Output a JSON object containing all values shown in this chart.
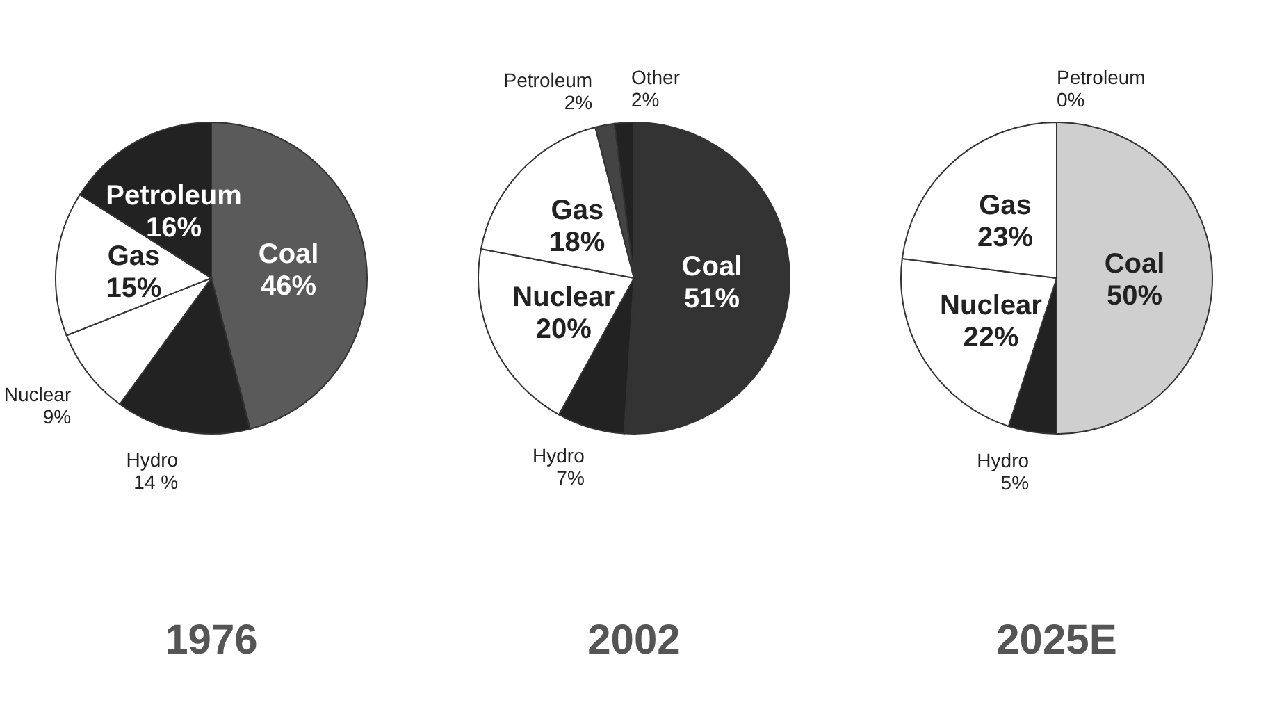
{
  "chart_data": [
    {
      "type": "pie",
      "title": "1976",
      "categories": [
        "Coal",
        "Hydro",
        "Nuclear",
        "Gas",
        "Petroleum"
      ],
      "values": [
        46,
        14,
        9,
        15,
        16
      ],
      "value_labels": [
        "46%",
        "14 %",
        "9%",
        "15%",
        "16%"
      ],
      "colors": [
        "#5a5a5a",
        "#222222",
        "#ffffff",
        "#ffffff",
        "#222222"
      ]
    },
    {
      "type": "pie",
      "title": "2002",
      "categories": [
        "Coal",
        "Hydro",
        "Nuclear",
        "Gas",
        "Petroleum",
        "Other"
      ],
      "values": [
        51,
        7,
        20,
        18,
        2,
        2
      ],
      "value_labels": [
        "51%",
        "7%",
        "20%",
        "18%",
        "2%",
        "2%"
      ],
      "colors": [
        "#333333",
        "#222222",
        "#ffffff",
        "#ffffff",
        "#444444",
        "#222222"
      ]
    },
    {
      "type": "pie",
      "title": "2025E",
      "categories": [
        "Coal",
        "Hydro",
        "Nuclear",
        "Gas",
        "Petroleum"
      ],
      "values": [
        50,
        5,
        22,
        23,
        0
      ],
      "value_labels": [
        "50%",
        "5%",
        "22%",
        "23%",
        "0%"
      ],
      "colors": [
        "#cfcfcf",
        "#222222",
        "#ffffff",
        "#ffffff",
        "#222222"
      ]
    }
  ]
}
